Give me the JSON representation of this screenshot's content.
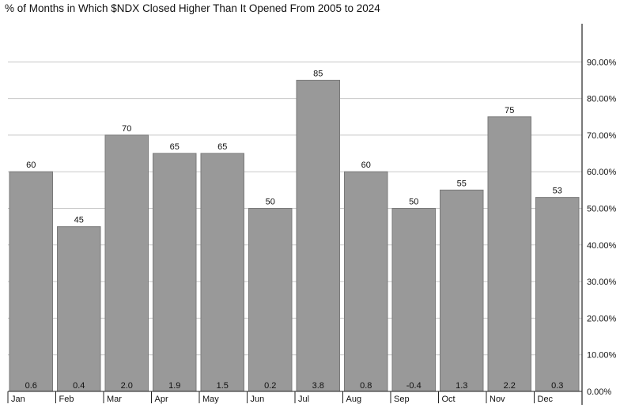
{
  "chart_data": {
    "type": "bar",
    "title": "% of Months in Which $NDX Closed Higher Than It Opened From 2005 to 2024",
    "categories": [
      "Jan",
      "Feb",
      "Mar",
      "Apr",
      "May",
      "Jun",
      "Jul",
      "Aug",
      "Sep",
      "Oct",
      "Nov",
      "Dec"
    ],
    "values": [
      60,
      45,
      70,
      65,
      65,
      50,
      85,
      60,
      50,
      55,
      75,
      53
    ],
    "value_labels": [
      "60",
      "45",
      "70",
      "65",
      "65",
      "50",
      "85",
      "60",
      "50",
      "55",
      "75",
      "53"
    ],
    "inner_labels": [
      "0.6",
      "0.4",
      "2.0",
      "1.9",
      "1.5",
      "0.2",
      "3.8",
      "0.8",
      "-0.4",
      "1.3",
      "2.2",
      "0.3"
    ],
    "y_ticks": [
      "0.00%",
      "10.00%",
      "20.00%",
      "30.00%",
      "40.00%",
      "50.00%",
      "60.00%",
      "70.00%",
      "80.00%",
      "90.00%"
    ],
    "y_tick_values": [
      0,
      10,
      20,
      30,
      40,
      50,
      60,
      70,
      80,
      90
    ],
    "ylim": [
      0,
      100
    ],
    "xlabel": "",
    "ylabel": "",
    "y_axis_side": "right",
    "grid": true,
    "colors": {
      "bar": "#999999",
      "bar_edge": "#7a7a7a",
      "grid": "#c8c8c8",
      "axis": "#222222"
    }
  }
}
